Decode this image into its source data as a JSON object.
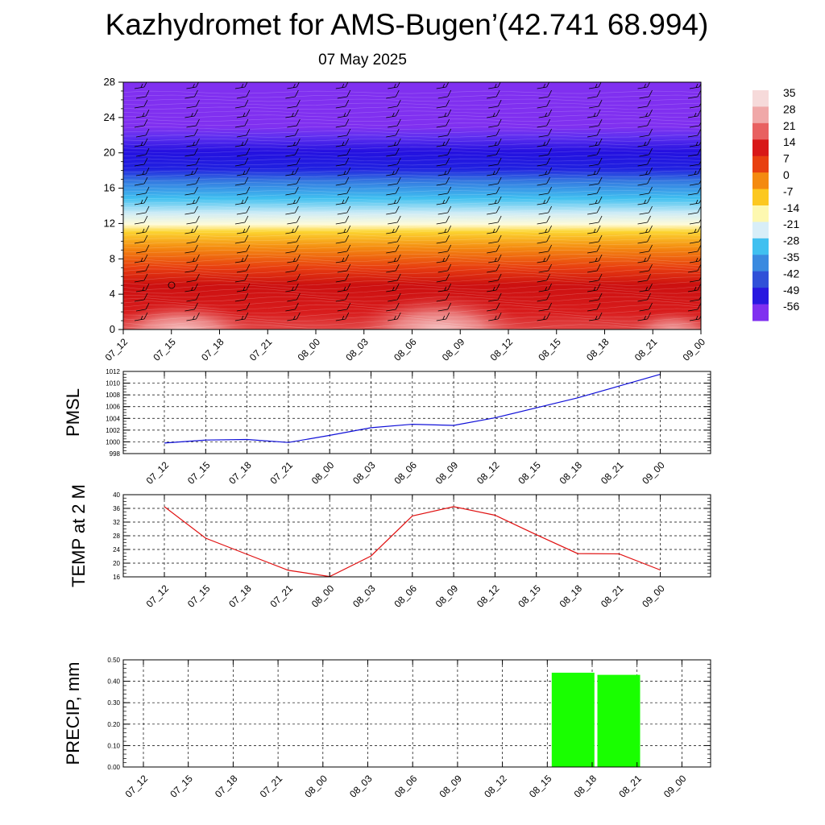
{
  "title": "Kazhydromet for AMS-Bugen’(42.741 68.994)",
  "subtitle": "07 May 2025",
  "chart_data": [
    {
      "type": "heatmap",
      "x_ticks": [
        "07_12",
        "07_15",
        "07_18",
        "07_21",
        "08_00",
        "08_03",
        "08_06",
        "08_09",
        "08_12",
        "08_15",
        "08_18",
        "08_21",
        "09_00"
      ],
      "y_ticks": [
        "0",
        "4",
        "8",
        "12",
        "16",
        "20",
        "24",
        "28"
      ],
      "ylim": [
        0,
        28
      ],
      "colorbar_labels": [
        "35",
        "28",
        "21",
        "14",
        "7",
        "0",
        "-7",
        "-14",
        "-21",
        "-28",
        "-35",
        "-42",
        "-49",
        "-56"
      ],
      "colorbar_colors": [
        "#f6dada",
        "#f0a8a8",
        "#e86060",
        "#d81818",
        "#e84010",
        "#f48a10",
        "#fcc820",
        "#fdf8b0",
        "#d8eef8",
        "#40c0f0",
        "#3a8ae0",
        "#3050d8",
        "#2818e0",
        "#8030f0"
      ],
      "wind_barbs": true
    },
    {
      "type": "line",
      "ylabel": "PMSL",
      "x": [
        "07_12",
        "07_15",
        "07_18",
        "07_21",
        "08_00",
        "08_03",
        "08_06",
        "08_09",
        "08_12",
        "08_15",
        "08_18",
        "08_21",
        "09_00"
      ],
      "values": [
        999.8,
        1000.3,
        1000.4,
        999.9,
        1001.1,
        1002.4,
        1003.0,
        1002.8,
        1004.1,
        1005.8,
        1007.5,
        1009.5,
        1011.5
      ],
      "ylim": [
        998,
        1012
      ],
      "y_ticks": [
        "998",
        "1000",
        "1002",
        "1004",
        "1006",
        "1008",
        "1010",
        "1012"
      ],
      "color": "#1010d8",
      "grid": true
    },
    {
      "type": "line",
      "ylabel": "TEMP at 2 M",
      "x": [
        "07_12",
        "07_15",
        "07_18",
        "07_21",
        "08_00",
        "08_03",
        "08_06",
        "08_09",
        "08_12",
        "08_15",
        "08_18",
        "08_21",
        "09_00"
      ],
      "values": [
        36.5,
        27.3,
        22.6,
        17.9,
        16.1,
        22.1,
        33.8,
        36.5,
        34.0,
        28.3,
        22.8,
        22.7,
        18.0
      ],
      "ylim": [
        16,
        40
      ],
      "y_ticks": [
        "16",
        "20",
        "24",
        "28",
        "32",
        "36",
        "40"
      ],
      "color": "#e01010",
      "grid": true
    },
    {
      "type": "bar",
      "ylabel": "PRECIP, mm",
      "categories": [
        "07_12",
        "07_15",
        "07_18",
        "07_21",
        "08_00",
        "08_03",
        "08_06",
        "08_09",
        "08_12",
        "08_15",
        "08_18",
        "08_21",
        "09_00"
      ],
      "values": [
        0,
        0,
        0,
        0,
        0,
        0,
        0,
        0,
        0,
        0,
        0.44,
        0.43,
        0
      ],
      "ylim": [
        0,
        0.5
      ],
      "y_ticks": [
        "0.00",
        "0.10",
        "0.20",
        "0.30",
        "0.40",
        "0.50"
      ],
      "color": "#19ff00",
      "grid": true
    }
  ]
}
